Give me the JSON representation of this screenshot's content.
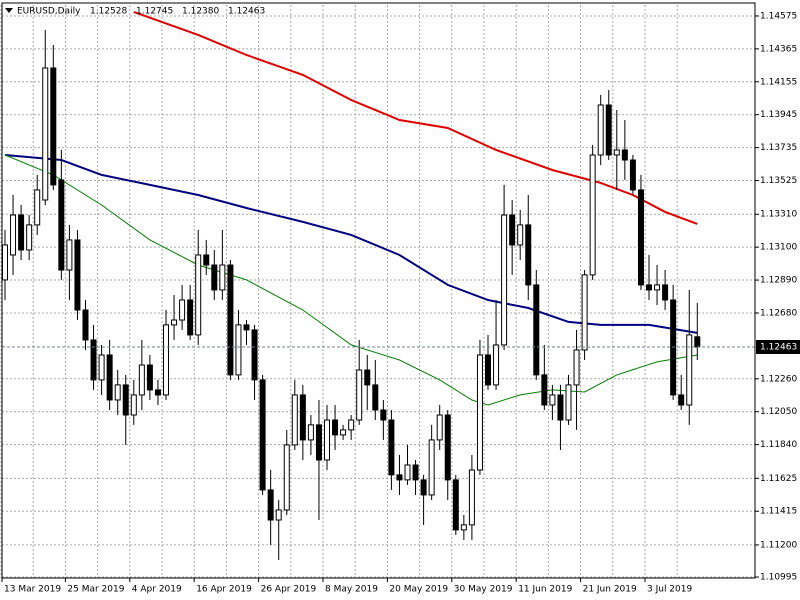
{
  "chart_data": {
    "type": "candlestick",
    "title": "EURUSD,Daily",
    "title_values": [
      "1.12528",
      "1.12745",
      "1.12380",
      "1.12463"
    ],
    "categories": [
      "13 Mar 2019",
      null,
      null,
      null,
      null,
      null,
      null,
      null,
      "25 Mar 2019",
      null,
      null,
      null,
      null,
      null,
      null,
      null,
      "4 Apr 2019",
      null,
      null,
      null,
      null,
      null,
      null,
      null,
      "16 Apr 2019",
      null,
      null,
      null,
      null,
      null,
      null,
      null,
      "26 Apr 2019",
      null,
      null,
      null,
      null,
      null,
      null,
      null,
      "8 May 2019",
      null,
      null,
      null,
      null,
      null,
      null,
      null,
      "20 May 2019",
      null,
      null,
      null,
      null,
      null,
      null,
      null,
      "30 May 2019",
      null,
      null,
      null,
      null,
      null,
      null,
      null,
      "11 Jun 2019",
      null,
      null,
      null,
      null,
      null,
      null,
      null,
      "21 Jun 2019",
      null,
      null,
      null,
      null,
      null,
      null,
      null,
      "3 Jul 2019",
      null,
      null,
      null,
      null,
      null,
      null
    ],
    "open": [
      1.12891,
      1.1305,
      1.13305,
      1.13082,
      1.13242,
      1.13401,
      1.14243,
      1.13529,
      1.12954,
      1.13146,
      1.12699,
      1.12508,
      1.12253,
      1.12412,
      1.12125,
      1.12221,
      1.12029,
      1.12157,
      1.12348,
      1.12189,
      1.12157,
      1.12604,
      1.12635,
      1.12763,
      1.1254,
      1.1305,
      1.12986,
      1.12827,
      1.12986,
      1.12285,
      1.12604,
      1.12572,
      1.12253,
      1.11551,
      1.11359,
      1.11423,
      1.11838,
      1.12157,
      1.1187,
      1.11966,
      1.11742,
      1.11997,
      1.11902,
      1.11934,
      1.11997,
      1.12316,
      1.12221,
      1.12061,
      1.11997,
      1.11647,
      1.11615,
      1.1171,
      1.11615,
      1.11519,
      1.1187,
      1.12029,
      1.11615,
      1.11296,
      1.11328,
      1.11678,
      1.12412,
      1.12221,
      1.12476,
      1.13305,
      1.13114,
      1.13242,
      1.12859,
      1.12285,
      1.12093,
      1.12157,
      1.11997,
      1.12221,
      1.12444,
      1.12923,
      1.13688,
      1.14007,
      1.13688,
      1.1372,
      1.13656,
      1.13465,
      1.12859,
      1.12827,
      1.12859,
      1.12763,
      1.12157,
      1.12093,
      1.12528
    ],
    "high": [
      1.1321,
      1.13433,
      1.13369,
      1.13305,
      1.13561,
      1.14486,
      1.1439,
      1.1372,
      1.13242,
      1.1321,
      1.12763,
      1.12604,
      1.12476,
      1.12508,
      1.12316,
      1.12285,
      1.12253,
      1.12508,
      1.12412,
      1.12253,
      1.12699,
      1.12795,
      1.12859,
      1.12859,
      1.1321,
      1.13146,
      1.13082,
      1.1321,
      1.13018,
      1.12699,
      1.12635,
      1.12604,
      1.12285,
      1.11678,
      1.11487,
      1.11934,
      1.12253,
      1.12221,
      1.12029,
      1.12125,
      1.12093,
      1.12093,
      1.11966,
      1.12029,
      1.12508,
      1.12412,
      1.1238,
      1.12125,
      1.12061,
      1.11774,
      1.11838,
      1.11742,
      1.11647,
      1.11966,
      1.12093,
      1.12061,
      1.11647,
      1.11391,
      1.11774,
      1.12508,
      1.1254,
      1.12763,
      1.13497,
      1.13401,
      1.13337,
      1.13433,
      1.12954,
      1.12476,
      1.12221,
      1.12221,
      1.12285,
      1.12572,
      1.12954,
      1.13752,
      1.14071,
      1.14103,
      1.13975,
      1.13911,
      1.13688,
      1.13561,
      1.1305,
      1.12986,
      1.12954,
      1.12859,
      1.12285,
      1.12827,
      1.12745
    ],
    "low": [
      1.12763,
      1.12923,
      1.13018,
      1.13018,
      1.13178,
      1.13369,
      1.13465,
      1.12891,
      1.12763,
      1.12635,
      1.12444,
      1.12189,
      1.12157,
      1.12061,
      1.12029,
      1.11838,
      1.11966,
      1.12061,
      1.12125,
      1.12093,
      1.12125,
      1.12508,
      1.12572,
      1.12508,
      1.12476,
      1.12923,
      1.12763,
      1.12763,
      1.12253,
      1.12253,
      1.12476,
      1.12125,
      1.11519,
      1.112,
      1.11104,
      1.11391,
      1.11806,
      1.11742,
      1.11774,
      1.11359,
      1.11678,
      1.11806,
      1.1187,
      1.1187,
      1.11966,
      1.12061,
      1.11997,
      1.1187,
      1.11551,
      1.11519,
      1.11583,
      1.11519,
      1.11328,
      1.11487,
      1.11806,
      1.11487,
      1.11264,
      1.11232,
      1.11232,
      1.11647,
      1.12189,
      1.12189,
      1.12444,
      1.12923,
      1.13018,
      1.12763,
      1.12253,
      1.12061,
      1.11997,
      1.11806,
      1.11966,
      1.11934,
      1.1238,
      1.12891,
      1.13624,
      1.13656,
      1.13465,
      1.13529,
      1.13433,
      1.12827,
      1.12763,
      1.12731,
      1.12699,
      1.12125,
      1.12061,
      1.11966,
      1.1238
    ],
    "close": [
      1.13114,
      1.13305,
      1.13082,
      1.13242,
      1.13465,
      1.14243,
      1.13497,
      1.12954,
      1.13146,
      1.12699,
      1.12508,
      1.12253,
      1.12412,
      1.12125,
      1.12221,
      1.12029,
      1.12157,
      1.12348,
      1.12189,
      1.12157,
      1.12604,
      1.12635,
      1.12763,
      1.1254,
      1.1305,
      1.12986,
      1.12827,
      1.12986,
      1.12285,
      1.12604,
      1.12572,
      1.12253,
      1.11551,
      1.11359,
      1.11423,
      1.11838,
      1.12157,
      1.1187,
      1.11966,
      1.11742,
      1.11997,
      1.11902,
      1.11934,
      1.11997,
      1.12316,
      1.12221,
      1.12061,
      1.11997,
      1.11647,
      1.11615,
      1.1171,
      1.11615,
      1.11519,
      1.1187,
      1.12029,
      1.11615,
      1.11296,
      1.11328,
      1.11678,
      1.12412,
      1.12221,
      1.12476,
      1.13305,
      1.13114,
      1.13242,
      1.12859,
      1.12285,
      1.12093,
      1.12157,
      1.11997,
      1.12221,
      1.12444,
      1.12923,
      1.13688,
      1.14007,
      1.13688,
      1.1372,
      1.13656,
      1.13465,
      1.12859,
      1.12827,
      1.12859,
      1.12763,
      1.12157,
      1.12093,
      1.1254,
      1.12463
    ],
    "up_color": "#ffffff",
    "down_color": "#000000",
    "series": [
      {
        "color": "#e00000",
        "width": 2,
        "x": [
          16,
          24,
          30,
          37,
          43,
          49,
          55,
          61,
          68,
          74,
          78,
          82,
          86
        ],
        "values": [
          1.14601,
          1.14454,
          1.14326,
          1.14199,
          1.14039,
          1.13911,
          1.1386,
          1.1372,
          1.13592,
          1.1351,
          1.13433,
          1.13325,
          1.13248
        ]
      },
      {
        "color": "#000080",
        "width": 2,
        "x": [
          0,
          7,
          12,
          18,
          24,
          30,
          37,
          43,
          49,
          55,
          60,
          65,
          70,
          74,
          80,
          86
        ],
        "values": [
          1.13688,
          1.13656,
          1.13561,
          1.13497,
          1.13433,
          1.1335,
          1.13261,
          1.13178,
          1.1305,
          1.12859,
          1.12763,
          1.12712,
          1.12623,
          1.12604,
          1.12604,
          1.12553
        ]
      },
      {
        "color": "#008000",
        "width": 1,
        "x": [
          0,
          6,
          12,
          18,
          24,
          30,
          37,
          43,
          49,
          54,
          58,
          60,
          64,
          68,
          72,
          76,
          81,
          86
        ],
        "values": [
          1.13688,
          1.13561,
          1.13369,
          1.13146,
          1.12986,
          1.12891,
          1.12699,
          1.12476,
          1.1238,
          1.12253,
          1.12125,
          1.12093,
          1.12157,
          1.12189,
          1.12176,
          1.12285,
          1.12368,
          1.12412
        ]
      }
    ],
    "ylim": [
      1.10989,
      1.14645
    ],
    "yticks": [
      1.14575,
      1.14365,
      1.14155,
      1.13945,
      1.13735,
      1.13525,
      {
        "value": 1.1331,
        "label": "1.13310"
      },
      {
        "value": 1.131,
        "label": "1.13100"
      },
      {
        "value": 1.1289,
        "label": "1.12890"
      },
      {
        "value": 1.1268,
        "label": "1.12680"
      },
      {
        "value": 1.1226,
        "label": "1.12260"
      },
      {
        "value": 1.1205,
        "label": "1.12050"
      },
      {
        "value": 1.1184,
        "label": "1.11840"
      },
      1.11625,
      1.11415,
      {
        "value": 1.112,
        "label": "1.11200"
      },
      1.10995
    ],
    "grid": true
  }
}
